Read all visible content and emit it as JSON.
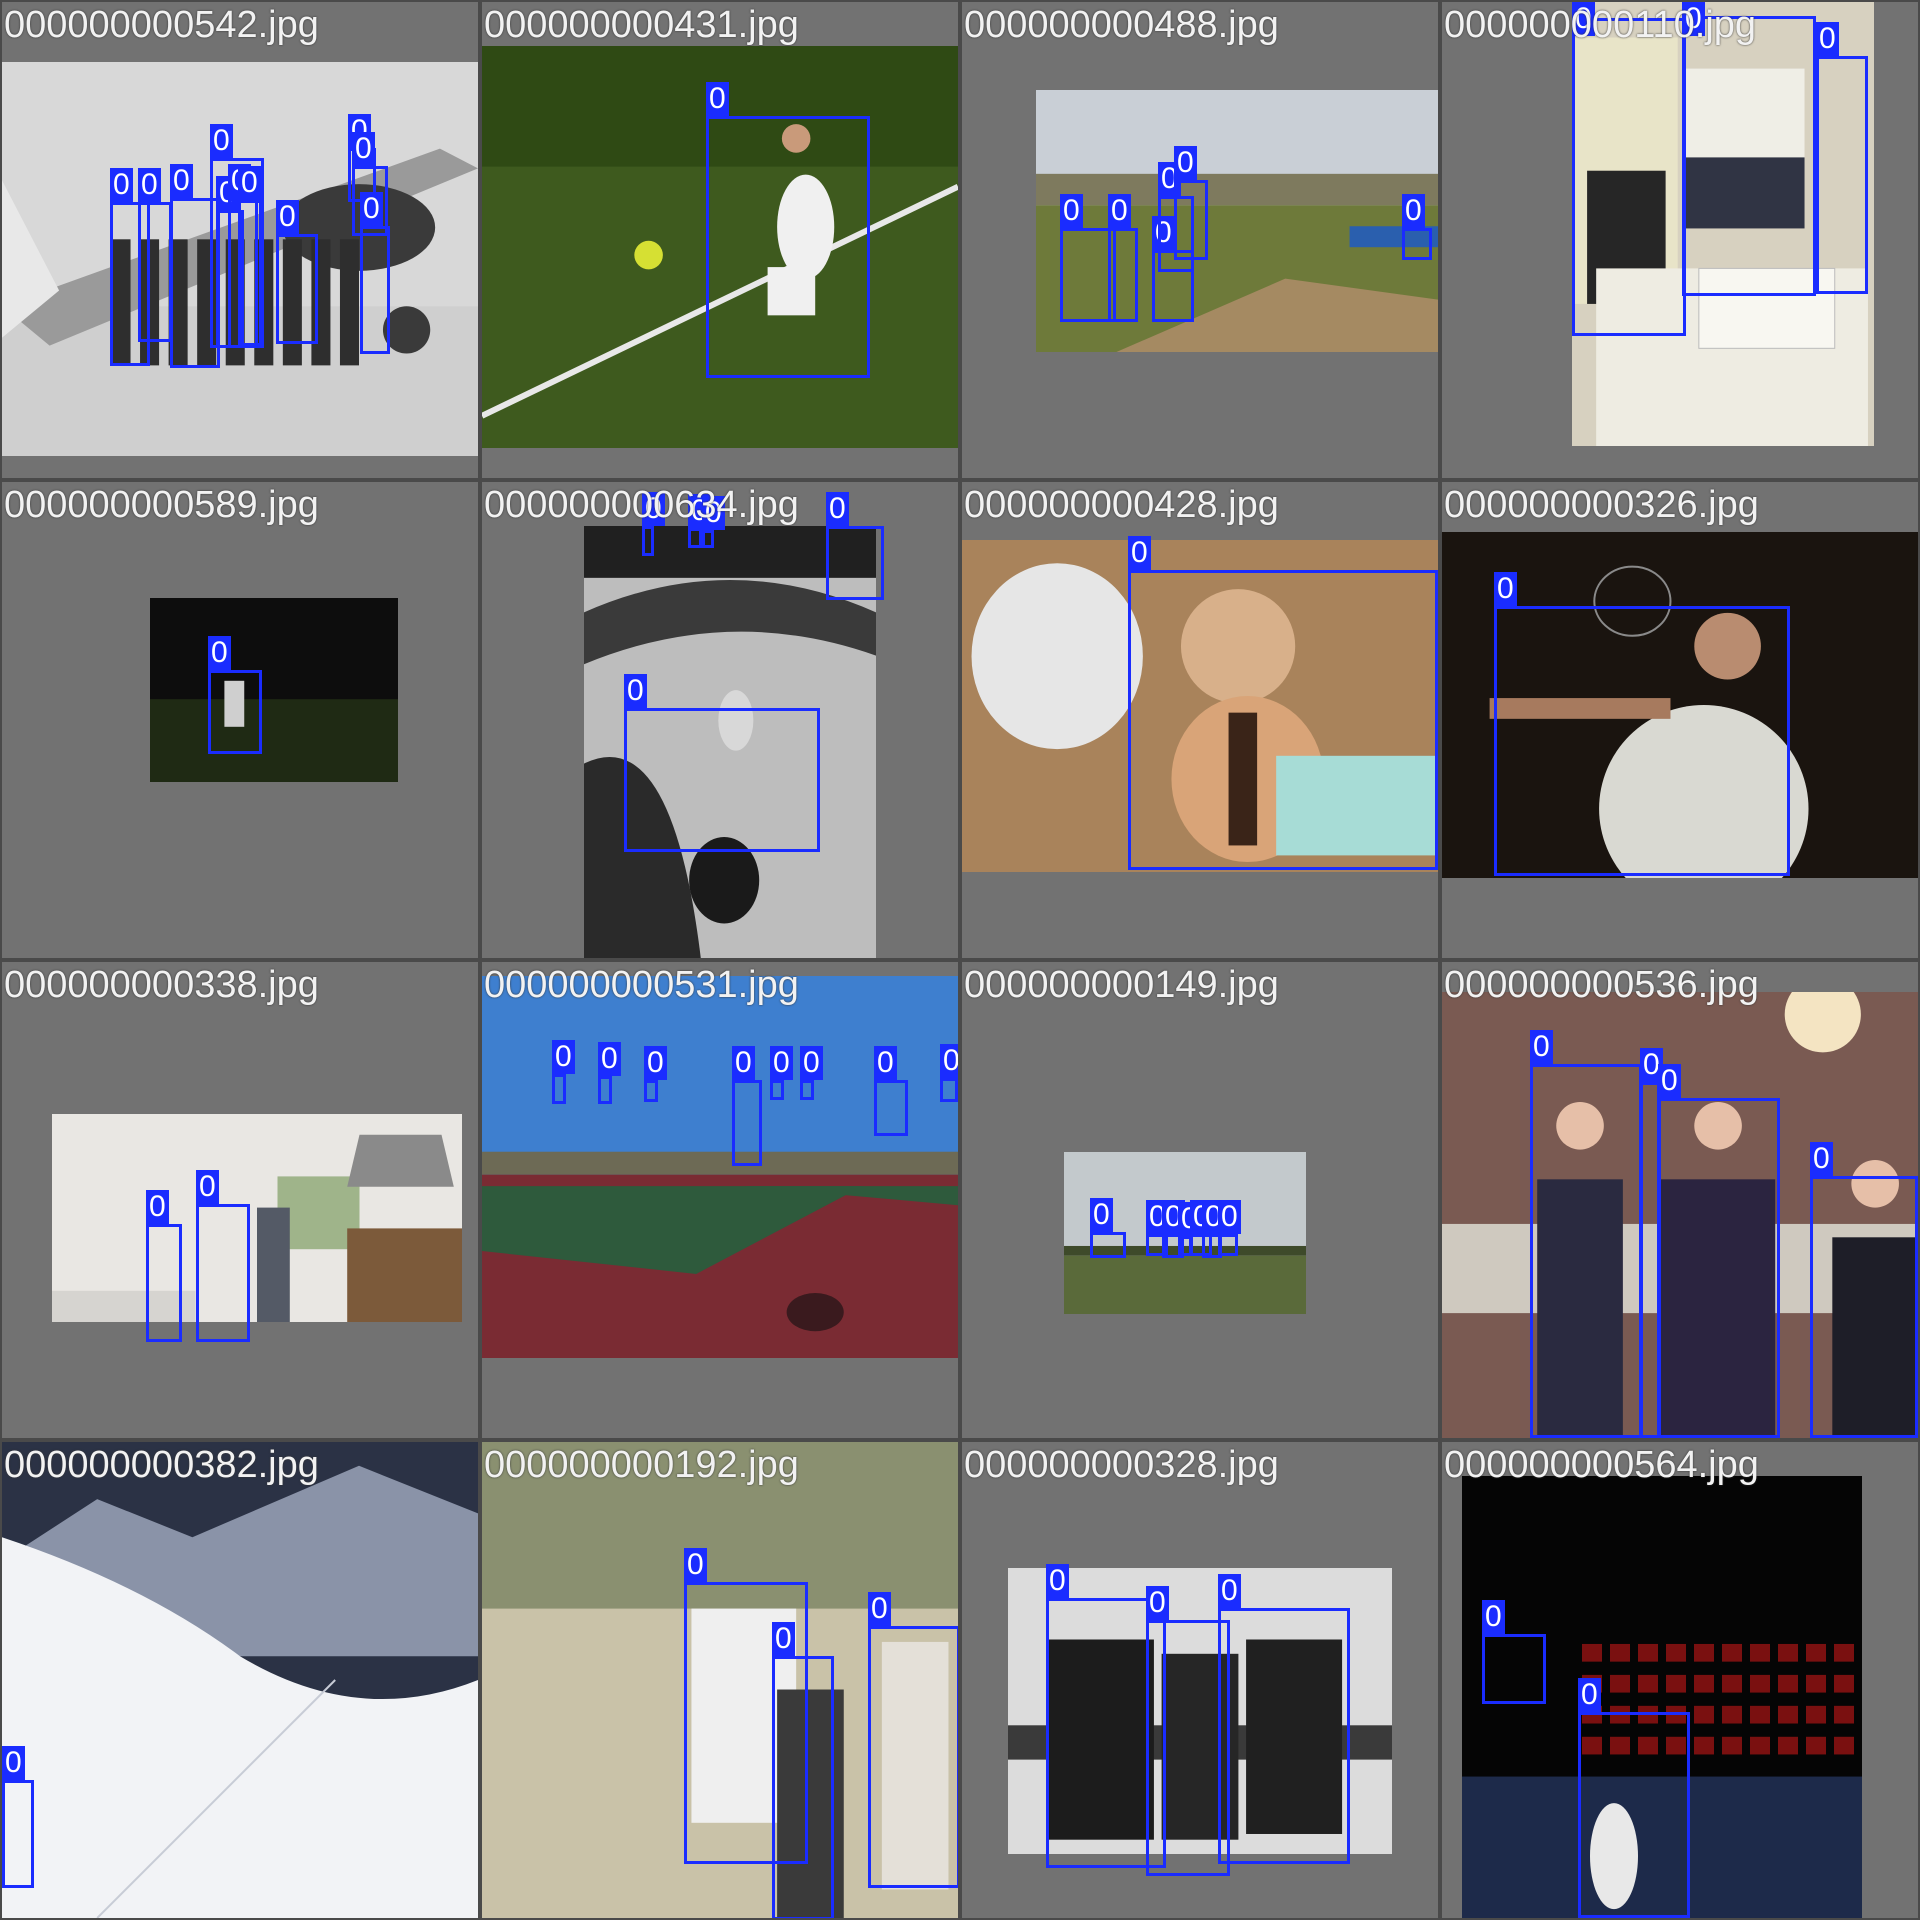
{
  "colors": {
    "box": "#1a2cff",
    "background": "#727272",
    "label_text": "#ffffff"
  },
  "tiles": [
    {
      "filename": "000000000542.jpg",
      "photo": {
        "scene": "bw-biplane",
        "palette": [
          "#d8d8d8",
          "#9a9a9a",
          "#3a3a3a"
        ]
      },
      "boxes": [
        {
          "label": "0"
        },
        {
          "label": "0"
        },
        {
          "label": "0"
        },
        {
          "label": "0"
        },
        {
          "label": "0"
        },
        {
          "label": "0"
        },
        {
          "label": "0"
        },
        {
          "label": "0"
        },
        {
          "label": "0"
        },
        {
          "label": "0"
        },
        {
          "label": "0"
        }
      ]
    },
    {
      "filename": "000000000431.jpg",
      "photo": {
        "scene": "tennis-grass",
        "palette": [
          "#3e5a1e",
          "#2f4a14",
          "#243a10"
        ]
      },
      "boxes": [
        {
          "label": "0"
        }
      ]
    },
    {
      "filename": "000000000488.jpg",
      "photo": {
        "scene": "baseball-field",
        "palette": [
          "#c9cfd6",
          "#8b8b6a",
          "#6e7a3a"
        ]
      },
      "boxes": [
        {
          "label": "0"
        },
        {
          "label": "0"
        },
        {
          "label": "0"
        },
        {
          "label": "0"
        },
        {
          "label": "0"
        },
        {
          "label": "0"
        }
      ]
    },
    {
      "filename": "000000000110.jpg",
      "photo": {
        "scene": "couple-cake",
        "palette": [
          "#d7d1c0",
          "#b9b4a2",
          "#6a6656"
        ]
      },
      "boxes": [
        {
          "label": "0"
        },
        {
          "label": "0"
        },
        {
          "label": "0"
        }
      ]
    },
    {
      "filename": "000000000589.jpg",
      "photo": {
        "scene": "night-field",
        "palette": [
          "#0d0d0d",
          "#151a10",
          "#1f2a14"
        ]
      },
      "boxes": [
        {
          "label": "0"
        }
      ]
    },
    {
      "filename": "000000000634.jpg",
      "photo": {
        "scene": "skatepark-bw",
        "palette": [
          "#bdbdbd",
          "#8a8a8a",
          "#2a2a2a"
        ]
      },
      "boxes": [
        {
          "label": "0"
        },
        {
          "label": "0"
        },
        {
          "label": "0"
        },
        {
          "label": "0"
        },
        {
          "label": "0"
        }
      ]
    },
    {
      "filename": "000000000428.jpg",
      "photo": {
        "scene": "baby-cake",
        "palette": [
          "#a9835b",
          "#d8b08a",
          "#e6e6e6"
        ]
      },
      "boxes": [
        {
          "label": "0"
        }
      ]
    },
    {
      "filename": "000000000326.jpg",
      "photo": {
        "scene": "man-wineglass",
        "palette": [
          "#1a140f",
          "#2b2219",
          "#d9d9d2"
        ]
      },
      "boxes": [
        {
          "label": "0"
        }
      ]
    },
    {
      "filename": "000000000338.jpg",
      "photo": {
        "scene": "kitchen",
        "palette": [
          "#e9e7e3",
          "#a6a3a0",
          "#545a66"
        ]
      },
      "boxes": [
        {
          "label": "0"
        },
        {
          "label": "0"
        }
      ]
    },
    {
      "filename": "000000000531.jpg",
      "photo": {
        "scene": "tennis-courts",
        "palette": [
          "#3e7fcf",
          "#2e5a3c",
          "#7a2b33"
        ]
      },
      "boxes": [
        {
          "label": "0"
        },
        {
          "label": "0"
        },
        {
          "label": "0"
        },
        {
          "label": "0"
        },
        {
          "label": "0"
        },
        {
          "label": "0"
        },
        {
          "label": "0"
        },
        {
          "label": "0"
        }
      ]
    },
    {
      "filename": "000000000149.jpg",
      "photo": {
        "scene": "field-kites",
        "palette": [
          "#c3c9cc",
          "#5a6a3a",
          "#3e4a2a"
        ]
      },
      "boxes": [
        {
          "label": "0"
        },
        {
          "label": "0"
        },
        {
          "label": "0"
        },
        {
          "label": "0"
        },
        {
          "label": "0"
        },
        {
          "label": "0"
        },
        {
          "label": "0"
        }
      ]
    },
    {
      "filename": "000000000536.jpg",
      "photo": {
        "scene": "three-women",
        "palette": [
          "#7a5a52",
          "#b09080",
          "#2a2a40"
        ]
      },
      "boxes": [
        {
          "label": "0"
        },
        {
          "label": "0"
        },
        {
          "label": "0"
        },
        {
          "label": "0"
        }
      ]
    },
    {
      "filename": "000000000382.jpg",
      "photo": {
        "scene": "snow-mountain",
        "palette": [
          "#2b3245",
          "#dfe2ea",
          "#f2f3f6"
        ]
      },
      "boxes": [
        {
          "label": "0"
        }
      ]
    },
    {
      "filename": "000000000192.jpg",
      "photo": {
        "scene": "baseball-players",
        "palette": [
          "#8a9070",
          "#c9c2a8",
          "#3a3a3a"
        ]
      },
      "boxes": [
        {
          "label": "0"
        },
        {
          "label": "0"
        },
        {
          "label": "0"
        }
      ]
    },
    {
      "filename": "000000000328.jpg",
      "photo": {
        "scene": "bw-soldiers-bench",
        "palette": [
          "#dcdcdc",
          "#8a8a8a",
          "#1c1c1c"
        ]
      },
      "boxes": [
        {
          "label": "0"
        },
        {
          "label": "0"
        },
        {
          "label": "0"
        }
      ]
    },
    {
      "filename": "000000000564.jpg",
      "photo": {
        "scene": "tennis-stadium",
        "palette": [
          "#050505",
          "#7a1010",
          "#1d2a4a"
        ]
      },
      "boxes": [
        {
          "label": "0"
        },
        {
          "label": "0"
        }
      ]
    }
  ]
}
